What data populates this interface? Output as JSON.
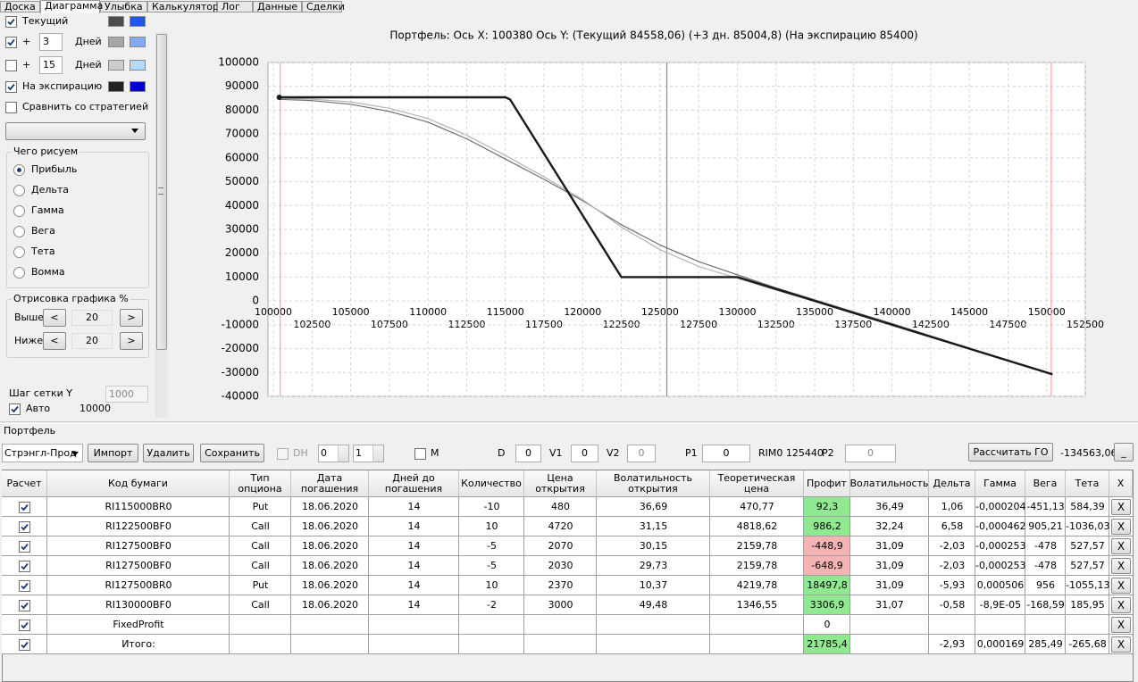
{
  "tabs": [
    "Доска",
    "Диаграмма",
    "Улыбка",
    "Калькулятор",
    "Лог",
    "Данные",
    "Сделки"
  ],
  "active_tab": 1,
  "sidebar": {
    "curves": [
      {
        "checked": true,
        "label": "Текущий",
        "colors": [
          "#4d4d4d",
          "#2255ee"
        ]
      },
      {
        "checked": true,
        "prefix": "+",
        "days": "3",
        "unit": "Дней",
        "colors": [
          "#a6a6a6",
          "#80aaf2"
        ]
      },
      {
        "checked": false,
        "prefix": "+",
        "days": "15",
        "unit": "Дней",
        "colors": [
          "#cccccc",
          "#b4dcfa"
        ]
      },
      {
        "checked": true,
        "label": "На экспирацию",
        "colors": [
          "#222222",
          "#0000c8"
        ]
      }
    ],
    "compare": {
      "checked": false,
      "label": "Сравнить со стратегией"
    },
    "draw_group": {
      "title": "Чего рисуем",
      "options": [
        "Прибыль",
        "Дельта",
        "Гамма",
        "Вега",
        "Тета",
        "Вомма"
      ],
      "selected": 0
    },
    "range_group": {
      "title": "Отрисовка графика %",
      "prev": "<",
      "next": ">",
      "rows": [
        {
          "label": "Выше",
          "value": "20"
        },
        {
          "label": "Ниже",
          "value": "20"
        }
      ]
    },
    "grid_step": {
      "label": "Шаг сетки Y",
      "value": "1000"
    },
    "auto": {
      "checked": true,
      "label": "Авто",
      "value": "10000"
    }
  },
  "chart_data": {
    "type": "line",
    "title": "Портфель: Ось X:  100380  Ось Y:  (Текущий 84558,06)  (+3 дн. 85004,8)  (На экспирацию 85400)",
    "xlim": [
      99650,
      152500
    ],
    "ylim": [
      -40000,
      100000
    ],
    "xticks": [
      100000,
      102500,
      105000,
      107500,
      110000,
      112500,
      115000,
      117500,
      120000,
      122500,
      125000,
      127500,
      130000,
      132500,
      135000,
      137500,
      140000,
      142500,
      145000,
      147500,
      150000,
      152500
    ],
    "yticks": [
      -40000,
      -30000,
      -20000,
      -10000,
      0,
      10000,
      20000,
      30000,
      40000,
      50000,
      60000,
      70000,
      80000,
      90000,
      100000
    ],
    "grid": true,
    "vlines": [
      {
        "x": 100440,
        "color": "#f4a4a4"
      },
      {
        "x": 125440,
        "color": "#8c8c8c"
      },
      {
        "x": 150300,
        "color": "#f4a4a4"
      }
    ],
    "series": [
      {
        "color": "#6e6e6e",
        "width": 1.2,
        "x": [
          100380,
          102500,
          105000,
          107500,
          110000,
          112500,
          115000,
          117500,
          120000,
          122500,
          125000,
          127500,
          130000,
          132500,
          135000,
          137500,
          140000,
          145000,
          150380
        ],
        "values": [
          84558,
          84000,
          82500,
          79500,
          75000,
          68000,
          59500,
          51000,
          42000,
          32000,
          23500,
          16500,
          11000,
          5500,
          500,
          -4500,
          -9500,
          -19800,
          -30700
        ]
      },
      {
        "color": "#b4b4b4",
        "width": 1.2,
        "x": [
          100380,
          102500,
          105000,
          107500,
          110000,
          112500,
          115000,
          117500,
          120000,
          122500,
          125000,
          127500,
          130000,
          132500,
          135000,
          137500,
          140000,
          145000,
          150380
        ],
        "values": [
          85005,
          84600,
          83500,
          80800,
          76500,
          69500,
          61000,
          52000,
          42500,
          31000,
          21500,
          14500,
          9500,
          4500,
          0,
          -4800,
          -9800,
          -20000,
          -30750
        ]
      },
      {
        "color": "#1a1a1a",
        "width": 2.4,
        "x": [
          100380,
          115000,
          115300,
          122500,
          130000,
          150380
        ],
        "values": [
          85400,
          85400,
          84500,
          10000,
          10000,
          -30760
        ]
      }
    ]
  },
  "portfolio": {
    "title": "Портфель",
    "strategy": "Стрэнгл-Прод",
    "buttons": [
      "Импорт",
      "Удалить",
      "Сохранить"
    ],
    "dh": {
      "label": "DH",
      "checked": false
    },
    "spin1": "0",
    "spin2": "1",
    "m": {
      "label": "M",
      "checked": false
    },
    "fields": [
      {
        "label": "D",
        "value": "0"
      },
      {
        "label": "V1",
        "value": "0"
      },
      {
        "label": "V2",
        "value": "0"
      },
      {
        "label": "P1",
        "value": "0"
      }
    ],
    "instrument": "RIM0 125440",
    "p2": {
      "label": "P2",
      "value": "0"
    },
    "go_button": "Рассчитать ГО",
    "go_value": "-134563,06",
    "minimize": "_"
  },
  "table": {
    "columns": [
      "Расчет",
      "Код бумаги",
      "Тип\nопциона",
      "Дата\nпогашения",
      "Дней до\nпогашения",
      "Количество",
      "Цена\nоткрытия",
      "Волатильность\nоткрытия",
      "Теоретическая\nцена",
      "Профит",
      "Волатильность",
      "Дельта",
      "Гамма",
      "Вега",
      "Тета",
      "X"
    ],
    "delete_label": "X",
    "rows": [
      {
        "checked": true,
        "profit_fill": "#90e890",
        "cells": [
          "RI115000BR0",
          "Put",
          "18.06.2020",
          "14",
          "-10",
          "480",
          "36,69",
          "470,77",
          "92,3",
          "36,49",
          "1,06",
          "-0,000204",
          "-451,13",
          "584,39"
        ]
      },
      {
        "checked": true,
        "profit_fill": "#90e890",
        "cells": [
          "RI122500BF0",
          "Call",
          "18.06.2020",
          "14",
          "10",
          "4720",
          "31,15",
          "4818,62",
          "986,2",
          "32,24",
          "6,58",
          "-0,000462",
          "905,21",
          "-1036,03"
        ]
      },
      {
        "checked": true,
        "profit_fill": "#f5b4b4",
        "cells": [
          "RI127500BF0",
          "Call",
          "18.06.2020",
          "14",
          "-5",
          "2070",
          "30,15",
          "2159,78",
          "-448,9",
          "31,09",
          "-2,03",
          "-0,000253",
          "-478",
          "527,57"
        ]
      },
      {
        "checked": true,
        "profit_fill": "#f5b4b4",
        "cells": [
          "RI127500BF0",
          "Call",
          "18.06.2020",
          "14",
          "-5",
          "2030",
          "29,73",
          "2159,78",
          "-648,9",
          "31,09",
          "-2,03",
          "-0,000253",
          "-478",
          "527,57"
        ]
      },
      {
        "checked": true,
        "profit_fill": "#90e890",
        "cells": [
          "RI127500BR0",
          "Put",
          "18.06.2020",
          "14",
          "10",
          "2370",
          "10,37",
          "4219,78",
          "18497,8",
          "31,09",
          "-5,93",
          "0,000506",
          "956",
          "-1055,13"
        ]
      },
      {
        "checked": true,
        "profit_fill": "#90e890",
        "cells": [
          "RI130000BF0",
          "Call",
          "18.06.2020",
          "14",
          "-2",
          "3000",
          "49,48",
          "1346,55",
          "3306,9",
          "31,07",
          "-0,58",
          "-8,9E-05",
          "-168,59",
          "185,95"
        ]
      },
      {
        "checked": true,
        "profit_fill": null,
        "cells": [
          "FixedProfit",
          null,
          null,
          null,
          null,
          null,
          null,
          null,
          "0",
          null,
          null,
          null,
          null,
          null
        ]
      },
      {
        "checked": true,
        "profit_fill": "#90e890",
        "cells": [
          "Итого:",
          null,
          null,
          null,
          null,
          null,
          null,
          null,
          "21785,4",
          null,
          "-2,93",
          "0,000169",
          "285,49",
          "-265,68"
        ]
      }
    ]
  }
}
